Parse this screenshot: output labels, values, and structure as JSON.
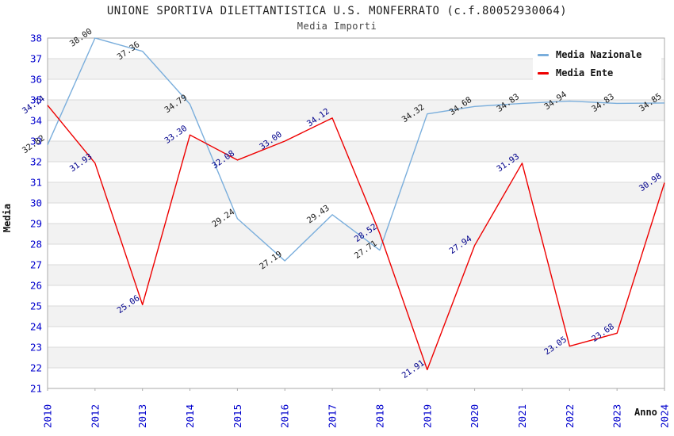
{
  "chart_data": {
    "type": "line",
    "title": "UNIONE SPORTIVA DILETTANTISTICA U.S. MONFERRATO (c.f.80052930064)",
    "subtitle": "Media Importi",
    "xlabel": "Anno",
    "ylabel": "Media",
    "categories": [
      "2010",
      "2012",
      "2013",
      "2014",
      "2015",
      "2016",
      "2017",
      "2018",
      "2019",
      "2020",
      "2021",
      "2022",
      "2023",
      "2024"
    ],
    "series": [
      {
        "name": "Media Nazionale",
        "color": "#7aaedc",
        "label_color": "#1a1a1a",
        "values": [
          32.82,
          38.0,
          37.36,
          34.79,
          29.24,
          27.19,
          29.43,
          27.71,
          34.32,
          34.68,
          34.83,
          34.94,
          34.83,
          34.85
        ]
      },
      {
        "name": "Media Ente",
        "color": "#ee0000",
        "label_color": "#00008b",
        "values": [
          34.74,
          31.93,
          25.06,
          33.3,
          32.08,
          33.0,
          34.12,
          28.52,
          21.91,
          27.94,
          31.93,
          23.05,
          23.68,
          30.98
        ]
      }
    ],
    "ylim": [
      21,
      38
    ],
    "ytick_step": 1,
    "grid": true,
    "band_fill": "#f2f2f2",
    "grid_color": "#d9d9d9",
    "border_color": "#aaaaaa",
    "tick_label_color": "#0000cd",
    "legend_position": "top-right"
  }
}
